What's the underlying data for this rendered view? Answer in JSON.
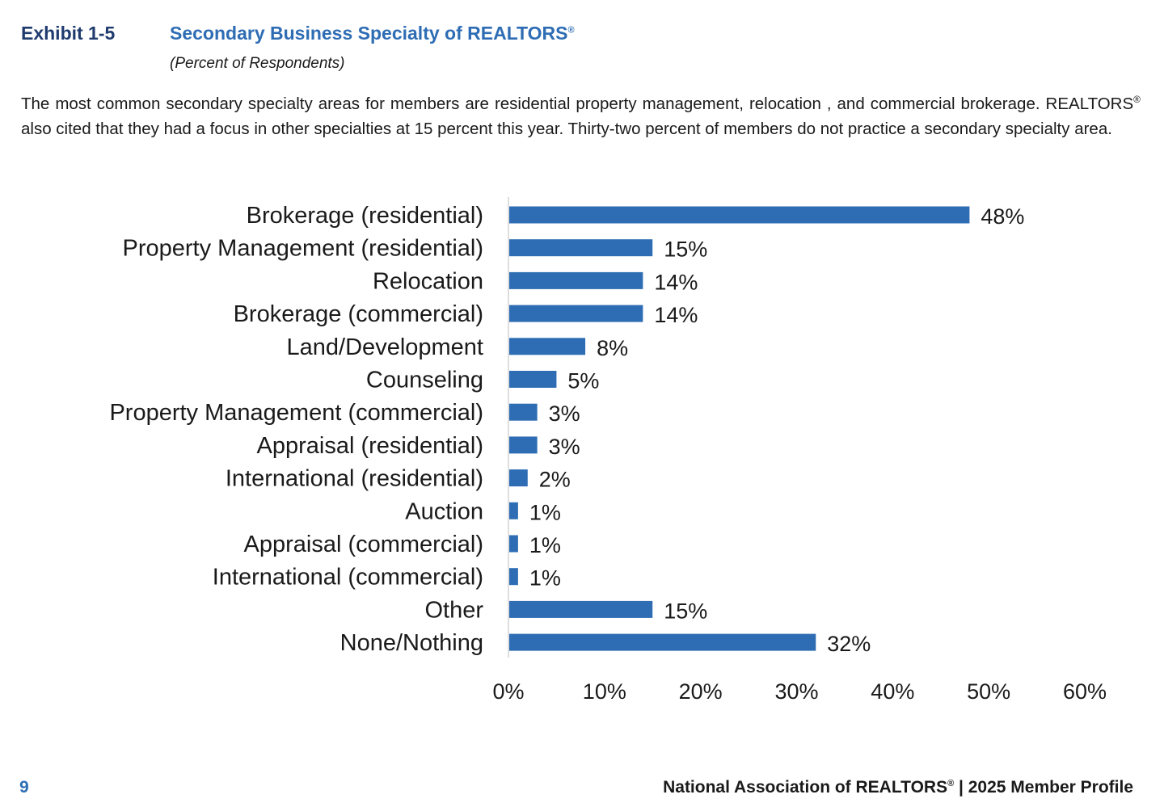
{
  "header": {
    "exhibit_number": "Exhibit 1-5",
    "title": "Secondary Business Specialty of REALTORS",
    "title_mark": "®",
    "subtitle": "(Percent of Respondents)"
  },
  "description": {
    "part1": "The most common secondary specialty areas for members are residential property management, relocation , and commercial brokerage. REALTORS",
    "mark": "®",
    "part2": " also cited that they had a focus in other specialties at 15 percent this year. Thirty-two percent of members do not practice a secondary specialty area."
  },
  "chart_data": {
    "type": "bar",
    "orientation": "horizontal",
    "categories": [
      "Brokerage (residential)",
      "Property Management (residential)",
      "Relocation",
      "Brokerage (commercial)",
      "Land/Development",
      "Counseling",
      "Property Management (commercial)",
      "Appraisal (residential)",
      "International (residential)",
      "Auction",
      "Appraisal (commercial)",
      "International (commercial)",
      "Other",
      "None/Nothing"
    ],
    "values": [
      48,
      15,
      14,
      14,
      8,
      5,
      3,
      3,
      2,
      1,
      1,
      1,
      15,
      32
    ],
    "value_labels": [
      "48%",
      "15%",
      "14%",
      "14%",
      "8%",
      "5%",
      "3%",
      "3%",
      "2%",
      "1%",
      "1%",
      "1%",
      "15%",
      "32%"
    ],
    "xlim": [
      0,
      60
    ],
    "xticks": [
      "0%",
      "10%",
      "20%",
      "30%",
      "40%",
      "50%",
      "60%"
    ],
    "grid": false,
    "bar_color": "#2e6db4"
  },
  "footer": {
    "page_number": "9",
    "publisher": "National Association of REALTORS",
    "publisher_mark": "®",
    "separator": " | ",
    "report": "2025 Member Profile"
  }
}
